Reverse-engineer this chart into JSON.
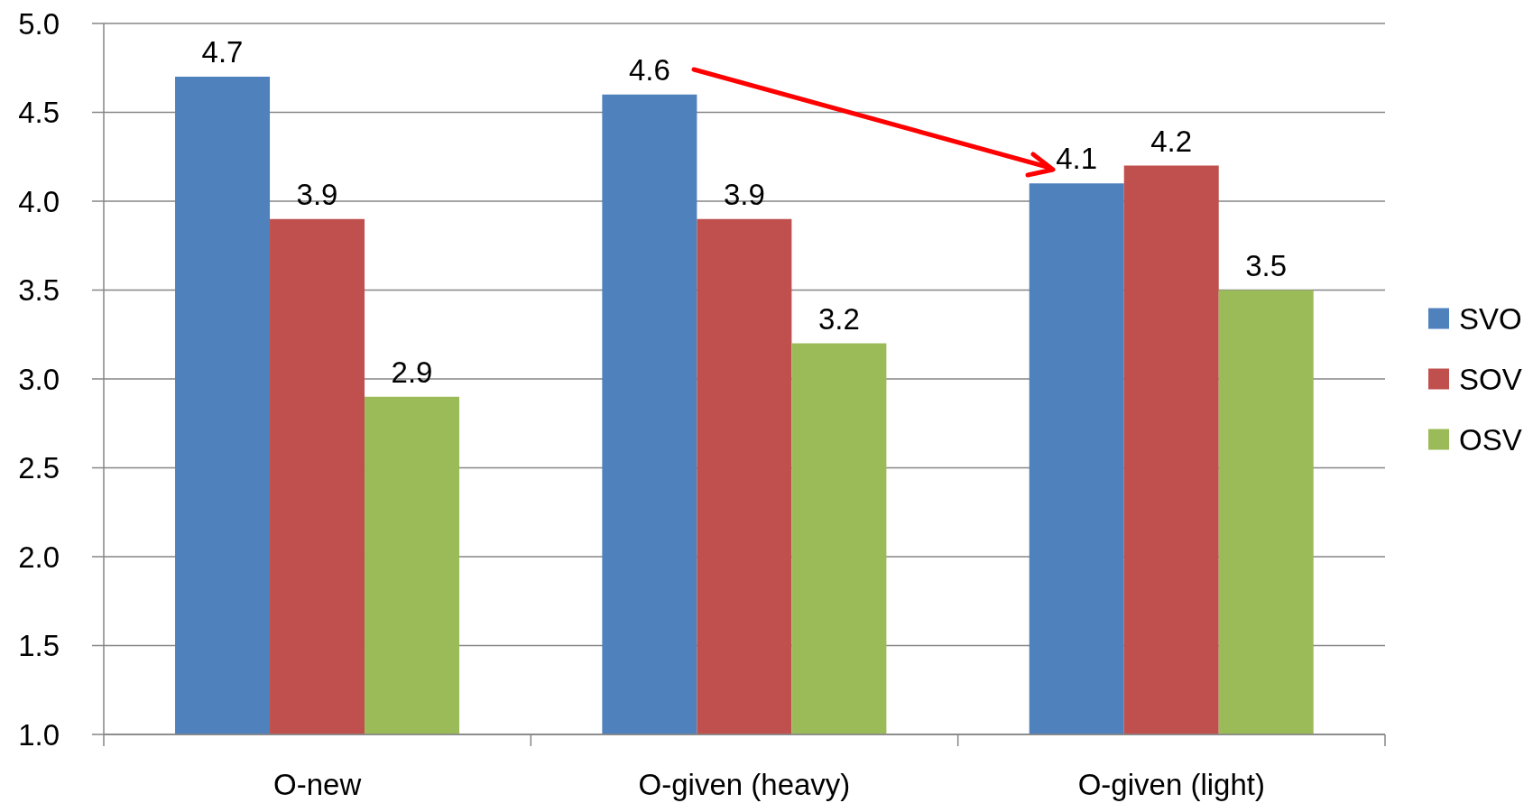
{
  "chart_data": {
    "type": "bar",
    "categories": [
      "O-new",
      "O-given (heavy)",
      "O-given (light)"
    ],
    "series": [
      {
        "name": "SVO",
        "color": "#4f81bd",
        "values": [
          4.7,
          4.6,
          4.1
        ]
      },
      {
        "name": "SOV",
        "color": "#c0504d",
        "values": [
          3.9,
          3.9,
          4.2
        ]
      },
      {
        "name": "OSV",
        "color": "#9bbb59",
        "values": [
          2.9,
          3.2,
          3.5
        ]
      }
    ],
    "ylim": [
      1,
      5
    ],
    "yticks": [
      {
        "value": 1,
        "label": "1.0"
      },
      {
        "value": 1.5,
        "label": "1.5"
      },
      {
        "value": 2,
        "label": "2.0"
      },
      {
        "value": 2.5,
        "label": "2.5"
      },
      {
        "value": 3,
        "label": "3.0"
      },
      {
        "value": 3.5,
        "label": "3.5"
      },
      {
        "value": 4,
        "label": "4.0"
      },
      {
        "value": 4.5,
        "label": "4.5"
      },
      {
        "value": 5,
        "label": "5.0"
      }
    ],
    "grid": "y",
    "legend": "right",
    "data_labels": true
  }
}
